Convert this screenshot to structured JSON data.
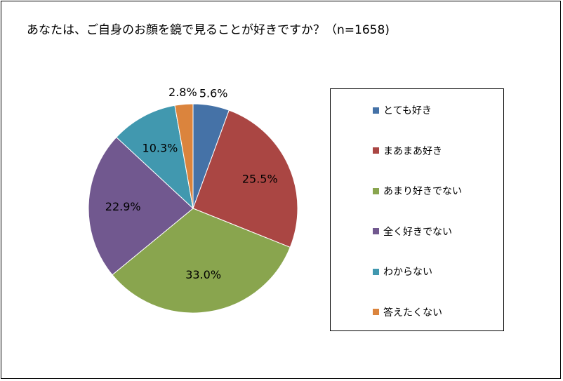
{
  "chart_data": {
    "type": "pie",
    "title": "あなたは、ご自身のお顔を鏡で見ることが好きですか？（n=1658)",
    "categories": [
      "とても好き",
      "まあまあ好き",
      "あまり好きでない",
      "全く好きでない",
      "わからない",
      "答えたくない"
    ],
    "values": [
      5.6,
      25.5,
      33.0,
      22.9,
      10.3,
      2.8
    ],
    "labels": [
      "5.6%",
      "25.5%",
      "33.0%",
      "22.9%",
      "10.3%",
      "2.8%"
    ],
    "colors": [
      "#4572A7",
      "#AA4643",
      "#89A54E",
      "#71588F",
      "#4198AF",
      "#DB843D"
    ],
    "legend_position": "right"
  }
}
